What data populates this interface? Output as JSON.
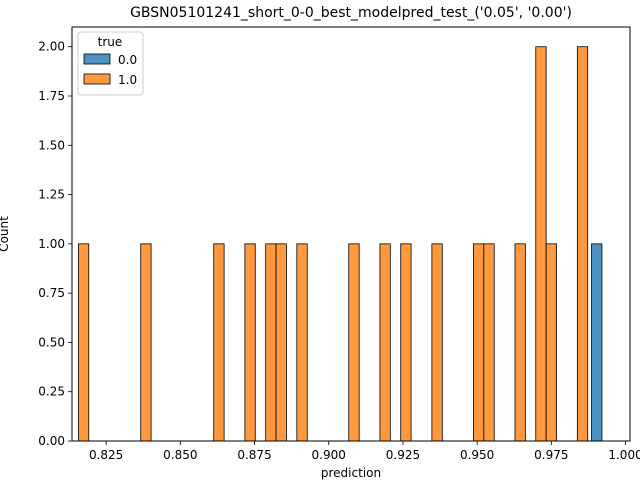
{
  "chart_data": {
    "type": "bar",
    "title": "GBSN05101241_short_0-0_best_modelpred_test_('0.05', '0.00')",
    "xlabel": "prediction",
    "ylabel": "Count",
    "xlim": [
      0.8135,
      1.0015
    ],
    "ylim": [
      0,
      2.1
    ],
    "x_ticks": [
      "0.825",
      "0.850",
      "0.875",
      "0.900",
      "0.925",
      "0.950",
      "0.975",
      "1.000"
    ],
    "y_ticks": [
      "0.00",
      "0.25",
      "0.50",
      "0.75",
      "1.00",
      "1.25",
      "1.50",
      "1.75",
      "2.00"
    ],
    "legend": {
      "title": "true",
      "position": "upper left",
      "entries": [
        "0.0",
        "1.0"
      ]
    },
    "bin_width": 0.0035,
    "series": [
      {
        "name": "0.0",
        "color": "#4c92c3",
        "bars": [
          {
            "x": 0.9903,
            "y": 1
          }
        ]
      },
      {
        "name": "1.0",
        "color": "#ff993f",
        "bars": [
          {
            "x": 0.8174,
            "y": 1
          },
          {
            "x": 0.8384,
            "y": 1
          },
          {
            "x": 0.863,
            "y": 1
          },
          {
            "x": 0.8735,
            "y": 1
          },
          {
            "x": 0.8805,
            "y": 1
          },
          {
            "x": 0.884,
            "y": 1
          },
          {
            "x": 0.891,
            "y": 1
          },
          {
            "x": 0.9085,
            "y": 1
          },
          {
            "x": 0.919,
            "y": 1
          },
          {
            "x": 0.926,
            "y": 1
          },
          {
            "x": 0.9365,
            "y": 1
          },
          {
            "x": 0.9505,
            "y": 1
          },
          {
            "x": 0.954,
            "y": 1
          },
          {
            "x": 0.9645,
            "y": 1
          },
          {
            "x": 0.9715,
            "y": 2
          },
          {
            "x": 0.975,
            "y": 1
          },
          {
            "x": 0.9855,
            "y": 2
          }
        ]
      }
    ]
  }
}
